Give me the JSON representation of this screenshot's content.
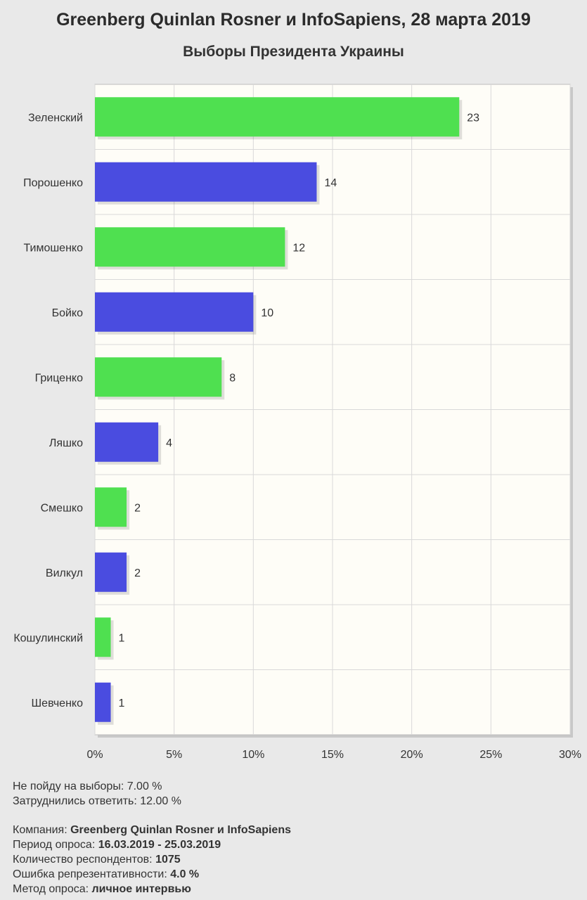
{
  "header": {
    "title": "Greenberg Quinlan Rosner и InfoSapiens, 28 марта 2019",
    "subtitle": "Выборы Президента Украины"
  },
  "colors": {
    "green": "#4fe050",
    "blue": "#4a4ce0",
    "plot_bg": "#fefdf7",
    "grid": "#d9d9d9"
  },
  "chart_data": {
    "type": "bar",
    "orientation": "horizontal",
    "categories": [
      "Зеленский",
      "Порошенко",
      "Тимошенко",
      "Бойко",
      "Гриценко",
      "Ляшко",
      "Смешко",
      "Вилкул",
      "Кошулинский",
      "Шевченко"
    ],
    "values": [
      23,
      14,
      12,
      10,
      8,
      4,
      2,
      2,
      1,
      1
    ],
    "value_labels": [
      "23",
      "14",
      "12",
      "10",
      "8",
      "4",
      "2",
      "2",
      "1",
      "1"
    ],
    "bar_colors": [
      "green",
      "blue",
      "green",
      "blue",
      "green",
      "blue",
      "green",
      "blue",
      "green",
      "blue"
    ],
    "x_ticks": [
      0,
      5,
      10,
      15,
      20,
      25,
      30
    ],
    "x_tick_labels": [
      "0%",
      "5%",
      "10%",
      "15%",
      "20%",
      "25%",
      "30%"
    ],
    "xlim": [
      0,
      30
    ],
    "grid": true
  },
  "notes": {
    "line1": "Не пойду на выборы: 7.00 %",
    "line2": "Затруднились ответить: 12.00 %"
  },
  "meta": {
    "company_label": "Компания: ",
    "company_value": "Greenberg Quinlan Rosner и InfoSapiens",
    "period_label": "Период опроса: ",
    "period_value": "16.03.2019 - 25.03.2019",
    "respondents_label": "Количество респондентов: ",
    "respondents_value": "1075",
    "error_label": "Ошибка репрезентативности: ",
    "error_value": "4.0 %",
    "method_label": "Метод опроса: ",
    "method_value": "личное интервью"
  }
}
